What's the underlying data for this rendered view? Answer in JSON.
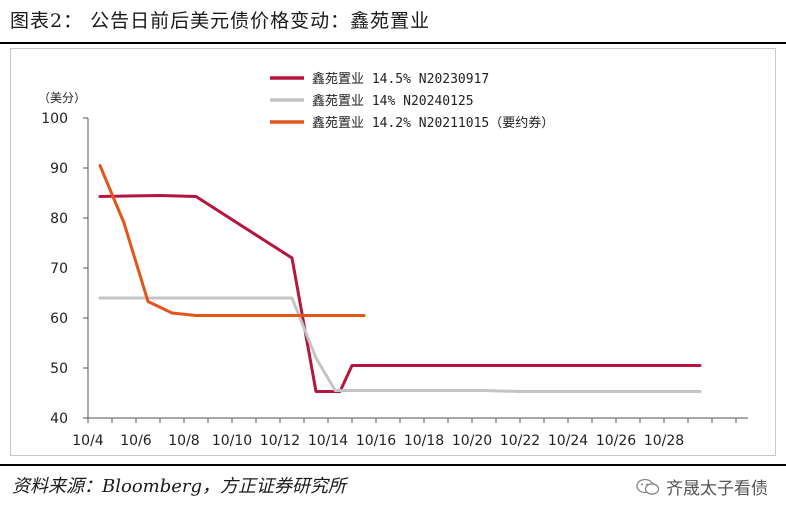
{
  "figure_title": "图表2：  公告日前后美元债价格变动：鑫苑置业",
  "source_text": "资料来源：Bloomberg，方正证券研究所",
  "watermark_text": "齐晟太子看债",
  "watermark_icon": "wechat-icon",
  "chart_data": {
    "type": "line",
    "unit_label": "（美分）",
    "ylim": [
      40,
      100
    ],
    "yticks": [
      40,
      50,
      60,
      70,
      80,
      90,
      100
    ],
    "xlim": [
      0,
      27.5
    ],
    "x_tick_labels": [
      "10/4",
      "10/6",
      "10/8",
      "10/10",
      "10/12",
      "10/14",
      "10/16",
      "10/18",
      "10/20",
      "10/22",
      "10/24",
      "10/26",
      "10/28"
    ],
    "x_tick_positions": [
      0,
      2,
      4,
      6,
      8,
      10,
      12,
      14,
      16,
      18,
      20,
      22,
      24
    ],
    "grid": false,
    "legend_position": "top-right",
    "series": [
      {
        "name": "鑫苑置业 14.5% N20230917",
        "color": "#b5153f",
        "points": [
          [
            0.5,
            84.3
          ],
          [
            3,
            84.5
          ],
          [
            4.5,
            84.3
          ],
          [
            8.5,
            72
          ],
          [
            9.5,
            45.3
          ],
          [
            10.5,
            45.3
          ],
          [
            11,
            50.5
          ],
          [
            25.5,
            50.5
          ]
        ]
      },
      {
        "name": "鑫苑置业 14% N20240125",
        "color": "#c4c4c4",
        "points": [
          [
            0.5,
            64
          ],
          [
            8.5,
            64
          ],
          [
            9.5,
            52
          ],
          [
            10.3,
            45.5
          ],
          [
            16.5,
            45.5
          ],
          [
            18,
            45.3
          ],
          [
            25.5,
            45.3
          ]
        ]
      },
      {
        "name": "鑫苑置业 14.2% N20211015（要约券）",
        "color": "#e2561a",
        "points": [
          [
            0.5,
            90.5
          ],
          [
            1.5,
            79
          ],
          [
            2.5,
            63.3
          ],
          [
            3.5,
            61
          ],
          [
            4.5,
            60.5
          ],
          [
            11.5,
            60.5
          ]
        ]
      }
    ]
  }
}
